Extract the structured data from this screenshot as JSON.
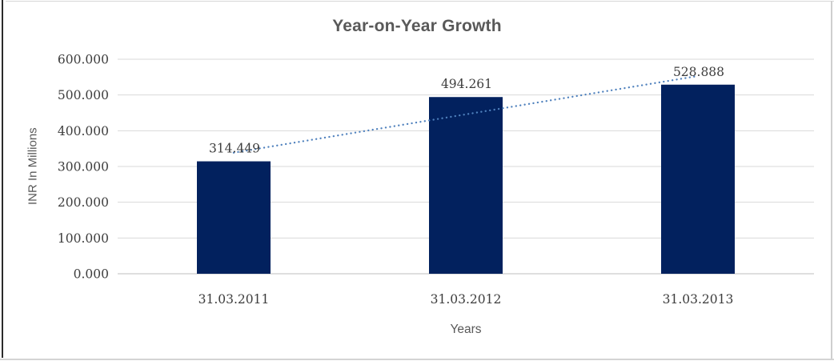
{
  "chart_data": {
    "type": "bar",
    "title": "Year-on-Year Growth",
    "xlabel": "Years",
    "ylabel": "INR In Millions",
    "categories": [
      "31.03.2011",
      "31.03.2012",
      "31.03.2013"
    ],
    "values": [
      314.449,
      494.261,
      528.888
    ],
    "data_labels": [
      "314.449",
      "494.261",
      "528.888"
    ],
    "ylim": [
      0,
      600
    ],
    "ytick_step": 100,
    "ytick_labels": [
      "0.000",
      "100.000",
      "200.000",
      "300.000",
      "400.000",
      "500.000",
      "600.000"
    ],
    "grid": "horizontal-only",
    "legend": "none",
    "trendline": {
      "type": "linear",
      "style": "dotted",
      "color": "#4f81bd"
    },
    "colors": {
      "bar": "#02215e",
      "gridline": "#d9d9d9",
      "axis_line": "#bfbfbf",
      "title": "#595959",
      "axis_title": "#595959",
      "tick_label": "#3d3d3d",
      "data_label": "#3d3d3d",
      "frame_border": "#d4d4d4",
      "left_border": "#2b2b2b"
    }
  }
}
